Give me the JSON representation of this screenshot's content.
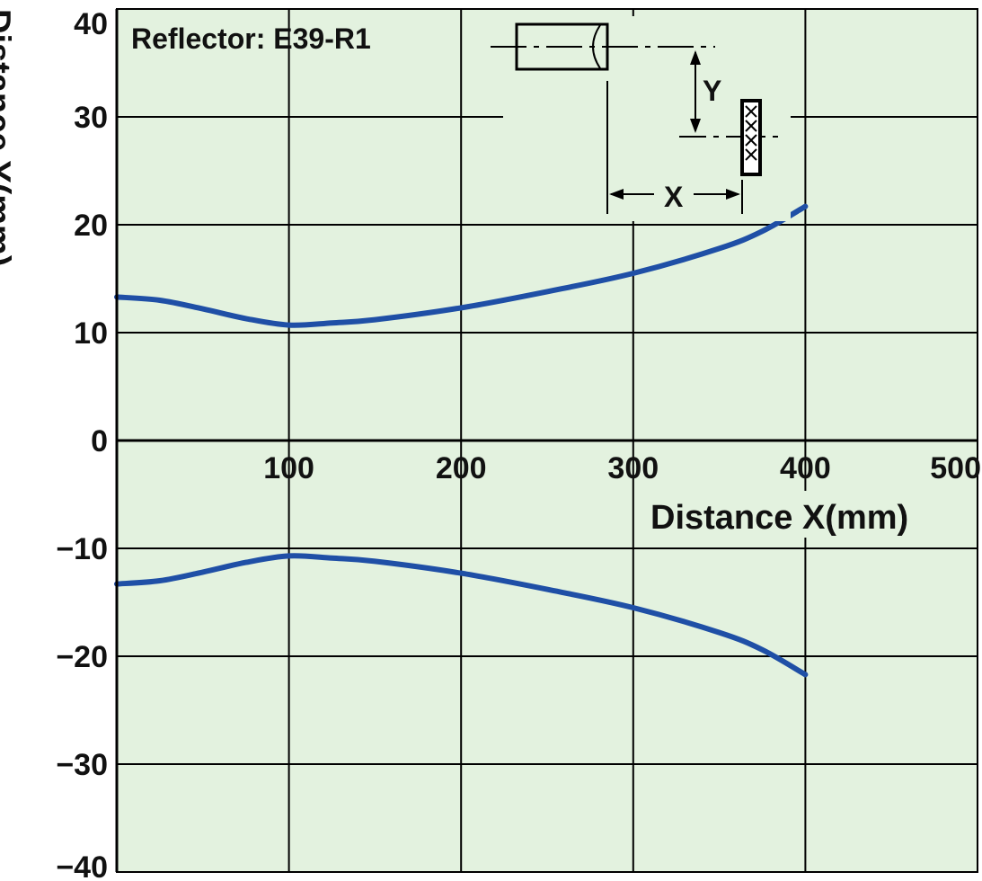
{
  "chart_data": {
    "type": "line",
    "annotation": "Reflector: E39-R1",
    "xlabel": "Distance X(mm)",
    "ylabel": "Distance Y(mm)",
    "xlim": [
      0,
      500
    ],
    "ylim": [
      -40,
      40
    ],
    "x_ticks": [
      "100",
      "200",
      "300",
      "400",
      "500"
    ],
    "y_ticks": [
      "40",
      "30",
      "20",
      "10",
      "0",
      "−10",
      "−20",
      "−30",
      "−40"
    ],
    "y_tick_values": [
      40,
      30,
      20,
      10,
      0,
      -10,
      -20,
      -30,
      -40
    ],
    "x_tick_values": [
      100,
      200,
      300,
      400,
      500
    ],
    "grid": true,
    "series": [
      {
        "x": [
          0,
          25,
          50,
          75,
          100,
          125,
          150,
          200,
          250,
          300,
          350,
          375,
          400
        ],
        "y": [
          13.3,
          13.0,
          12.2,
          11.3,
          10.7,
          10.9,
          11.2,
          12.3,
          13.8,
          15.5,
          17.8,
          19.4,
          21.7
        ]
      },
      {
        "x": [
          0,
          25,
          50,
          75,
          100,
          125,
          150,
          200,
          250,
          300,
          350,
          375,
          400
        ],
        "y": [
          -13.3,
          -13.0,
          -12.2,
          -11.3,
          -10.7,
          -10.9,
          -11.2,
          -12.3,
          -13.8,
          -15.5,
          -17.8,
          -19.4,
          -21.7
        ]
      }
    ],
    "colors": {
      "background": "#e3f2df",
      "grid": "#000000",
      "line": "#1f4fa6"
    },
    "diagram": {
      "y_label": "Y",
      "x_label": "X"
    }
  }
}
